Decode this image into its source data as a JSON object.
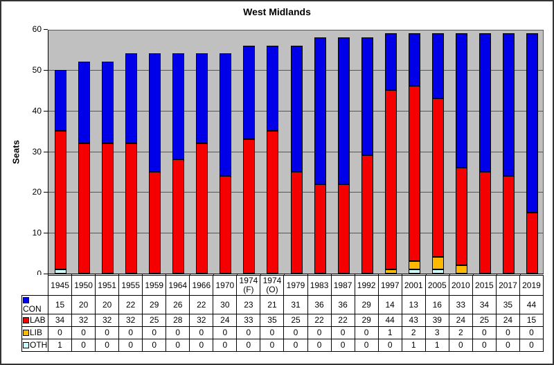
{
  "window": {
    "background_color": "#ffffff",
    "border_color": "#333333"
  },
  "chart_data": {
    "type": "bar",
    "stacked": true,
    "title": "West Midlands",
    "xlabel": "",
    "ylabel": "Seats",
    "ylim": [
      0,
      60
    ],
    "yticks": [
      0,
      10,
      20,
      30,
      40,
      50,
      60
    ],
    "grid": true,
    "plot_bg_color": "#c0c0c0",
    "gridline_color": "#555555",
    "legend_position": "table-left",
    "categories": [
      "1945",
      "1950",
      "1951",
      "1955",
      "1959",
      "1964",
      "1966",
      "1970",
      "1974 (F)",
      "1974 (O)",
      "1979",
      "1983",
      "1987",
      "1992",
      "1997",
      "2001",
      "2005",
      "2010",
      "2015",
      "2017",
      "2019"
    ],
    "series": [
      {
        "name": "CON",
        "color": "#0000e8",
        "values": [
          15,
          20,
          20,
          22,
          29,
          26,
          22,
          30,
          23,
          21,
          31,
          36,
          36,
          29,
          14,
          13,
          16,
          33,
          34,
          35,
          44
        ]
      },
      {
        "name": "LAB",
        "color": "#f50000",
        "values": [
          34,
          32,
          32,
          32,
          25,
          28,
          32,
          24,
          33,
          35,
          25,
          22,
          22,
          29,
          44,
          43,
          39,
          24,
          25,
          24,
          15
        ]
      },
      {
        "name": "LIB",
        "color": "#ffb800",
        "values": [
          0,
          0,
          0,
          0,
          0,
          0,
          0,
          0,
          0,
          0,
          0,
          0,
          0,
          0,
          1,
          2,
          3,
          2,
          0,
          0,
          0
        ]
      },
      {
        "name": "OTH",
        "color": "#ccffff",
        "values": [
          1,
          0,
          0,
          0,
          0,
          0,
          0,
          0,
          0,
          0,
          0,
          0,
          0,
          0,
          0,
          1,
          1,
          0,
          0,
          0,
          0
        ]
      }
    ],
    "stack_order_bottom_to_top": [
      "OTH",
      "LIB",
      "LAB",
      "CON"
    ]
  }
}
